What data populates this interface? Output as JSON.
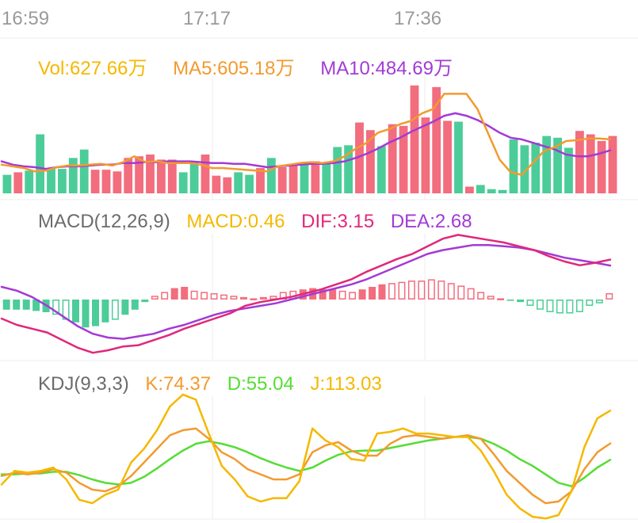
{
  "time_axis": {
    "labels": [
      "16:59",
      "17:17",
      "17:36"
    ]
  },
  "volume": {
    "vol_label": "Vol:627.66万",
    "ma5_label": "MA5:605.18万",
    "ma10_label": "MA10:484.69万"
  },
  "macd": {
    "title": "MACD(12,26,9)",
    "macd_label": "MACD:0.46",
    "dif_label": "DIF:3.15",
    "dea_label": "DEA:2.68"
  },
  "kdj": {
    "title": "KDJ(9,3,3)",
    "k_label": "K:74.37",
    "d_label": "D:55.04",
    "j_label": "J:113.03"
  },
  "colors": {
    "up": "#f26d7d",
    "down": "#4ccc99",
    "ma5": "#f29a2e",
    "ma10": "#a33ad6",
    "dif": "#e0287a",
    "dea": "#a33ad6",
    "k": "#f29a2e",
    "d": "#55dd33",
    "j": "#f5b800",
    "grid": "#eeeeee"
  },
  "chart_data": [
    {
      "type": "bar",
      "name": "Volume",
      "ylim": [
        0,
        140
      ],
      "bars": [
        {
          "v": 22,
          "d": "down"
        },
        {
          "v": 25,
          "d": "up"
        },
        {
          "v": 27,
          "d": "down"
        },
        {
          "v": 70,
          "d": "down"
        },
        {
          "v": 30,
          "d": "down"
        },
        {
          "v": 29,
          "d": "down"
        },
        {
          "v": 42,
          "d": "down"
        },
        {
          "v": 52,
          "d": "down"
        },
        {
          "v": 28,
          "d": "up"
        },
        {
          "v": 28,
          "d": "up"
        },
        {
          "v": 26,
          "d": "up"
        },
        {
          "v": 42,
          "d": "up"
        },
        {
          "v": 44,
          "d": "up"
        },
        {
          "v": 46,
          "d": "up"
        },
        {
          "v": 40,
          "d": "up"
        },
        {
          "v": 40,
          "d": "up"
        },
        {
          "v": 25,
          "d": "down"
        },
        {
          "v": 36,
          "d": "down"
        },
        {
          "v": 46,
          "d": "up"
        },
        {
          "v": 21,
          "d": "up"
        },
        {
          "v": 19,
          "d": "up"
        },
        {
          "v": 25,
          "d": "down"
        },
        {
          "v": 22,
          "d": "down"
        },
        {
          "v": 30,
          "d": "up"
        },
        {
          "v": 42,
          "d": "down"
        },
        {
          "v": 31,
          "d": "up"
        },
        {
          "v": 33,
          "d": "up"
        },
        {
          "v": 36,
          "d": "down"
        },
        {
          "v": 38,
          "d": "up"
        },
        {
          "v": 37,
          "d": "down"
        },
        {
          "v": 55,
          "d": "down"
        },
        {
          "v": 57,
          "d": "down"
        },
        {
          "v": 84,
          "d": "up"
        },
        {
          "v": 75,
          "d": "up"
        },
        {
          "v": 56,
          "d": "down"
        },
        {
          "v": 82,
          "d": "up"
        },
        {
          "v": 80,
          "d": "up"
        },
        {
          "v": 128,
          "d": "up"
        },
        {
          "v": 90,
          "d": "up"
        },
        {
          "v": 126,
          "d": "up"
        },
        {
          "v": 86,
          "d": "up"
        },
        {
          "v": 85,
          "d": "down"
        },
        {
          "v": 8,
          "d": "up"
        },
        {
          "v": 10,
          "d": "down"
        },
        {
          "v": 5,
          "d": "down"
        },
        {
          "v": 4,
          "d": "down"
        },
        {
          "v": 64,
          "d": "down"
        },
        {
          "v": 57,
          "d": "down"
        },
        {
          "v": 60,
          "d": "down"
        },
        {
          "v": 68,
          "d": "down"
        },
        {
          "v": 66,
          "d": "down"
        },
        {
          "v": 54,
          "d": "down"
        },
        {
          "v": 74,
          "d": "up"
        },
        {
          "v": 70,
          "d": "up"
        },
        {
          "v": 62,
          "d": "up"
        },
        {
          "v": 68,
          "d": "up"
        }
      ],
      "ma5": [
        34,
        32,
        30,
        26,
        27,
        31,
        33,
        33,
        34,
        35,
        33,
        37,
        44,
        37,
        38,
        36,
        36,
        36,
        34,
        30,
        30,
        29,
        28,
        27,
        26,
        32,
        34,
        36,
        37,
        36,
        38,
        44,
        53,
        60,
        72,
        76,
        82,
        86,
        95,
        100,
        118,
        118,
        118,
        100,
        70,
        40,
        25,
        22,
        36,
        50,
        55,
        62,
        63,
        65,
        65,
        64
      ],
      "ma10": [
        38,
        34,
        32,
        31,
        29,
        31,
        32,
        32,
        33,
        34,
        34,
        36,
        36,
        37,
        37,
        38,
        38,
        38,
        37,
        36,
        36,
        35,
        35,
        33,
        31,
        32,
        33,
        34,
        35,
        35,
        36,
        38,
        42,
        47,
        53,
        60,
        66,
        73,
        79,
        85,
        92,
        95,
        92,
        87,
        80,
        72,
        66,
        64,
        60,
        56,
        52,
        46,
        44,
        44,
        47,
        51
      ]
    },
    {
      "type": "bar",
      "name": "MACD",
      "ylim": [
        -4.5,
        5.5
      ],
      "histogram": [
        -0.8,
        -0.8,
        -0.8,
        -0.9,
        -1.0,
        -1.2,
        -1.6,
        -1.8,
        -2.2,
        -2.1,
        -1.8,
        -1.6,
        -1.2,
        -0.8,
        -0.2,
        0.3,
        0.6,
        0.9,
        1.0,
        0.7,
        0.6,
        0.5,
        0.4,
        0.3,
        0.2,
        0.1,
        0.2,
        0.3,
        0.6,
        0.7,
        0.8,
        0.9,
        0.8,
        0.8,
        0.7,
        0.6,
        0.8,
        1.0,
        1.2,
        1.3,
        1.4,
        1.5,
        1.5,
        1.6,
        1.5,
        1.3,
        1.1,
        0.9,
        0.6,
        0.3,
        0.1,
        -0.1,
        -0.2,
        -0.5,
        -0.8,
        -1.0,
        -1.1,
        -1.1,
        -1.0,
        -0.5,
        -0.3,
        0.5
      ],
      "dif": [
        -1.5,
        -2.0,
        -2.3,
        -2.6,
        -3.2,
        -3.8,
        -4.2,
        -4.0,
        -3.7,
        -3.6,
        -3.2,
        -2.8,
        -2.3,
        -1.9,
        -1.5,
        -1.1,
        -0.5,
        -0.2,
        0.0,
        0.2,
        0.5,
        0.8,
        1.2,
        1.6,
        2.2,
        2.7,
        3.2,
        3.6,
        4.2,
        4.8,
        5.1,
        4.9,
        4.7,
        4.5,
        4.2,
        3.9,
        3.4,
        3.0,
        2.7,
        2.9,
        3.15
      ],
      "dea": [
        1.0,
        0.7,
        0.2,
        -0.5,
        -1.3,
        -2.1,
        -2.7,
        -3.0,
        -3.1,
        -2.9,
        -2.7,
        -2.3,
        -2.0,
        -1.6,
        -1.2,
        -0.9,
        -0.7,
        -0.5,
        -0.3,
        0.0,
        0.3,
        0.6,
        0.9,
        1.2,
        1.6,
        2.1,
        2.6,
        3.1,
        3.6,
        3.9,
        4.1,
        4.3,
        4.3,
        4.2,
        4.1,
        3.9,
        3.6,
        3.3,
        3.1,
        2.9,
        2.68
      ]
    },
    {
      "type": "line",
      "name": "KDJ",
      "ylim": [
        -10,
        130
      ],
      "k": [
        36,
        40,
        38,
        40,
        44,
        40,
        28,
        20,
        18,
        24,
        36,
        52,
        68,
        84,
        90,
        92,
        80,
        64,
        56,
        44,
        38,
        32,
        32,
        38,
        64,
        72,
        76,
        66,
        60,
        60,
        74,
        82,
        84,
        82,
        80,
        82,
        84,
        80,
        62,
        42,
        28,
        14,
        4,
        6,
        18,
        44,
        64,
        74.37
      ],
      "d": [
        38,
        38,
        39,
        39,
        41,
        41,
        37,
        32,
        28,
        26,
        28,
        35,
        45,
        56,
        66,
        74,
        77,
        74,
        70,
        64,
        57,
        51,
        46,
        42,
        46,
        54,
        61,
        65,
        66,
        66,
        69,
        72,
        75,
        78,
        80,
        82,
        82,
        80,
        74,
        66,
        56,
        48,
        38,
        28,
        24,
        34,
        46,
        55.04
      ],
      "j": [
        26,
        42,
        40,
        42,
        46,
        32,
        8,
        4,
        14,
        20,
        52,
        68,
        90,
        118,
        132,
        126,
        86,
        48,
        32,
        12,
        6,
        10,
        10,
        30,
        92,
        78,
        70,
        56,
        54,
        86,
        88,
        92,
        86,
        86,
        84,
        82,
        82,
        66,
        42,
        14,
        -2,
        -12,
        -14,
        -10,
        18,
        70,
        104,
        113.03
      ]
    }
  ]
}
